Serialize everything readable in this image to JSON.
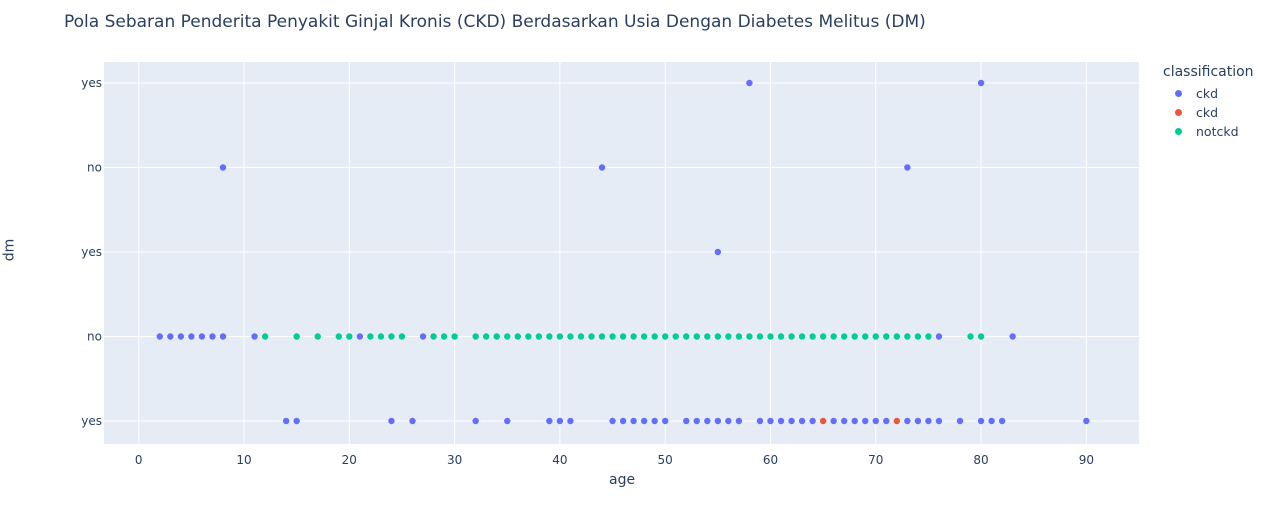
{
  "title": "Pola Sebaran Penderita Penyakit Ginjal Kronis (CKD) Berdasarkan Usia Dengan Diabetes Melitus (DM)",
  "legend": {
    "title": "classification",
    "items": [
      {
        "label": "ckd",
        "color": "#636efa"
      },
      {
        "label": "ckd",
        "color": "#ef553b"
      },
      {
        "label": "notckd",
        "color": "#00cc96"
      }
    ]
  },
  "colors": {
    "plot_bg": "#e5ecf6",
    "grid": "#ffffff",
    "text": "#2a3f5f"
  },
  "chart_data": {
    "type": "scatter",
    "title": "Pola Sebaran Penderita Penyakit Ginjal Kronis (CKD) Berdasarkan Usia Dengan Diabetes Melitus (DM)",
    "xlabel": "age",
    "ylabel": "dm",
    "xlim": [
      -3.3,
      95
    ],
    "x_ticks": [
      0,
      10,
      20,
      30,
      40,
      50,
      60,
      70,
      80,
      90
    ],
    "y_categories": [
      "yes",
      "no",
      "yes",
      "no",
      "yes"
    ],
    "grid": true,
    "legend_position": "top-right",
    "series": [
      {
        "name": "ckd",
        "color": "#636efa",
        "points": [
          {
            "x": 2,
            "y": 1
          },
          {
            "x": 3,
            "y": 1
          },
          {
            "x": 4,
            "y": 1
          },
          {
            "x": 5,
            "y": 1
          },
          {
            "x": 6,
            "y": 1
          },
          {
            "x": 7,
            "y": 1
          },
          {
            "x": 8,
            "y": 1
          },
          {
            "x": 11,
            "y": 1
          },
          {
            "x": 21,
            "y": 1
          },
          {
            "x": 27,
            "y": 1
          },
          {
            "x": 76,
            "y": 1
          },
          {
            "x": 83,
            "y": 1
          },
          {
            "x": 14,
            "y": 0
          },
          {
            "x": 15,
            "y": 0
          },
          {
            "x": 24,
            "y": 0
          },
          {
            "x": 26,
            "y": 0
          },
          {
            "x": 32,
            "y": 0
          },
          {
            "x": 35,
            "y": 0
          },
          {
            "x": 39,
            "y": 0
          },
          {
            "x": 40,
            "y": 0
          },
          {
            "x": 41,
            "y": 0
          },
          {
            "x": 45,
            "y": 0
          },
          {
            "x": 46,
            "y": 0
          },
          {
            "x": 47,
            "y": 0
          },
          {
            "x": 48,
            "y": 0
          },
          {
            "x": 49,
            "y": 0
          },
          {
            "x": 50,
            "y": 0
          },
          {
            "x": 52,
            "y": 0
          },
          {
            "x": 53,
            "y": 0
          },
          {
            "x": 54,
            "y": 0
          },
          {
            "x": 55,
            "y": 0
          },
          {
            "x": 56,
            "y": 0
          },
          {
            "x": 57,
            "y": 0
          },
          {
            "x": 59,
            "y": 0
          },
          {
            "x": 60,
            "y": 0
          },
          {
            "x": 61,
            "y": 0
          },
          {
            "x": 62,
            "y": 0
          },
          {
            "x": 63,
            "y": 0
          },
          {
            "x": 64,
            "y": 0
          },
          {
            "x": 66,
            "y": 0
          },
          {
            "x": 67,
            "y": 0
          },
          {
            "x": 68,
            "y": 0
          },
          {
            "x": 69,
            "y": 0
          },
          {
            "x": 70,
            "y": 0
          },
          {
            "x": 71,
            "y": 0
          },
          {
            "x": 73,
            "y": 0
          },
          {
            "x": 74,
            "y": 0
          },
          {
            "x": 75,
            "y": 0
          },
          {
            "x": 76,
            "y": 0
          },
          {
            "x": 78,
            "y": 0
          },
          {
            "x": 80,
            "y": 0
          },
          {
            "x": 81,
            "y": 0
          },
          {
            "x": 82,
            "y": 0
          },
          {
            "x": 90,
            "y": 0
          },
          {
            "x": 55,
            "y": 2
          },
          {
            "x": 8,
            "y": 3
          },
          {
            "x": 44,
            "y": 3
          },
          {
            "x": 73,
            "y": 3
          },
          {
            "x": 58,
            "y": 4
          },
          {
            "x": 80,
            "y": 4
          }
        ]
      },
      {
        "name": "ckd",
        "color": "#ef553b",
        "points": [
          {
            "x": 65,
            "y": 0
          },
          {
            "x": 72,
            "y": 0
          }
        ]
      },
      {
        "name": "notckd",
        "color": "#00cc96",
        "points": [
          {
            "x": 12,
            "y": 1
          },
          {
            "x": 15,
            "y": 1
          },
          {
            "x": 17,
            "y": 1
          },
          {
            "x": 19,
            "y": 1
          },
          {
            "x": 20,
            "y": 1
          },
          {
            "x": 22,
            "y": 1
          },
          {
            "x": 23,
            "y": 1
          },
          {
            "x": 24,
            "y": 1
          },
          {
            "x": 25,
            "y": 1
          },
          {
            "x": 28,
            "y": 1
          },
          {
            "x": 29,
            "y": 1
          },
          {
            "x": 30,
            "y": 1
          },
          {
            "x": 32,
            "y": 1
          },
          {
            "x": 33,
            "y": 1
          },
          {
            "x": 34,
            "y": 1
          },
          {
            "x": 35,
            "y": 1
          },
          {
            "x": 36,
            "y": 1
          },
          {
            "x": 37,
            "y": 1
          },
          {
            "x": 38,
            "y": 1
          },
          {
            "x": 39,
            "y": 1
          },
          {
            "x": 40,
            "y": 1
          },
          {
            "x": 41,
            "y": 1
          },
          {
            "x": 42,
            "y": 1
          },
          {
            "x": 43,
            "y": 1
          },
          {
            "x": 44,
            "y": 1
          },
          {
            "x": 45,
            "y": 1
          },
          {
            "x": 46,
            "y": 1
          },
          {
            "x": 47,
            "y": 1
          },
          {
            "x": 48,
            "y": 1
          },
          {
            "x": 49,
            "y": 1
          },
          {
            "x": 50,
            "y": 1
          },
          {
            "x": 51,
            "y": 1
          },
          {
            "x": 52,
            "y": 1
          },
          {
            "x": 53,
            "y": 1
          },
          {
            "x": 54,
            "y": 1
          },
          {
            "x": 55,
            "y": 1
          },
          {
            "x": 56,
            "y": 1
          },
          {
            "x": 57,
            "y": 1
          },
          {
            "x": 58,
            "y": 1
          },
          {
            "x": 59,
            "y": 1
          },
          {
            "x": 60,
            "y": 1
          },
          {
            "x": 61,
            "y": 1
          },
          {
            "x": 62,
            "y": 1
          },
          {
            "x": 63,
            "y": 1
          },
          {
            "x": 64,
            "y": 1
          },
          {
            "x": 65,
            "y": 1
          },
          {
            "x": 66,
            "y": 1
          },
          {
            "x": 67,
            "y": 1
          },
          {
            "x": 68,
            "y": 1
          },
          {
            "x": 69,
            "y": 1
          },
          {
            "x": 70,
            "y": 1
          },
          {
            "x": 71,
            "y": 1
          },
          {
            "x": 72,
            "y": 1
          },
          {
            "x": 73,
            "y": 1
          },
          {
            "x": 74,
            "y": 1
          },
          {
            "x": 75,
            "y": 1
          },
          {
            "x": 79,
            "y": 1
          },
          {
            "x": 80,
            "y": 1
          }
        ]
      }
    ]
  }
}
